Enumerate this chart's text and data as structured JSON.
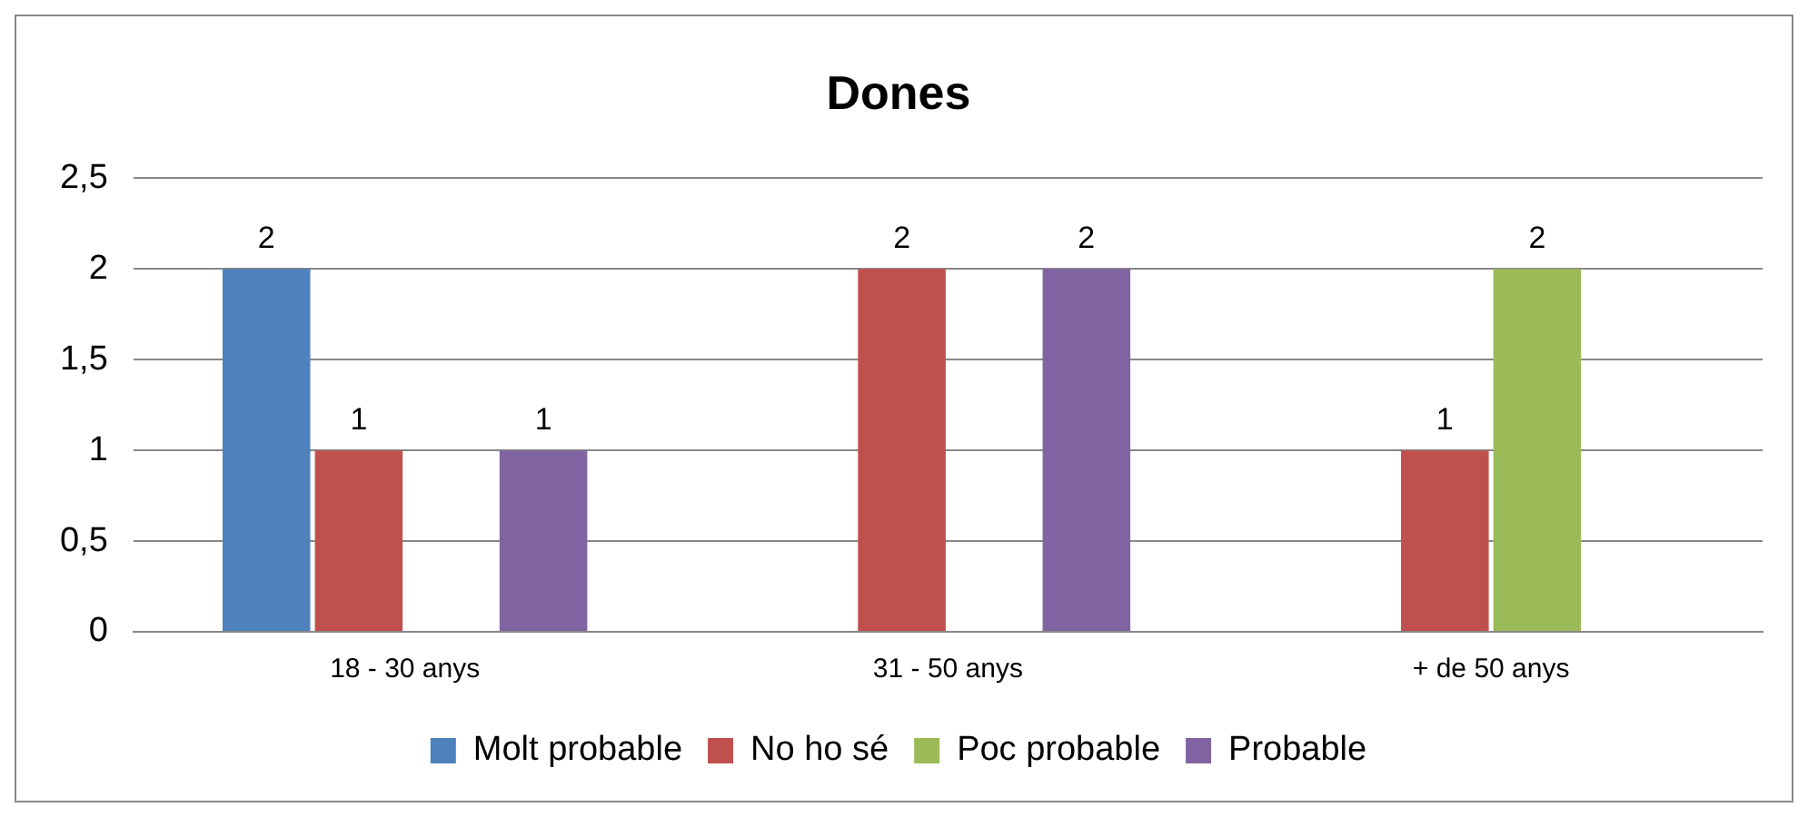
{
  "chart_data": {
    "type": "bar",
    "title": "Dones",
    "categories": [
      "18 - 30 anys",
      "31 - 50 anys",
      "+ de 50 anys"
    ],
    "series": [
      {
        "name": "Molt probable",
        "color": "#4f81bd",
        "values": [
          2,
          null,
          null
        ]
      },
      {
        "name": "No ho sé",
        "color": "#c0504d",
        "values": [
          1,
          2,
          1
        ]
      },
      {
        "name": "Poc probable",
        "color": "#9bbb59",
        "values": [
          null,
          null,
          2
        ]
      },
      {
        "name": "Probable",
        "color": "#8064a2",
        "values": [
          1,
          2,
          null
        ]
      }
    ],
    "ylim": [
      0,
      2.5
    ],
    "yticks": [
      0,
      {
        "value": 0.5,
        "label": "0,5"
      },
      1,
      {
        "value": 1.5,
        "label": "1,5"
      },
      2,
      {
        "value": 2.5,
        "label": "2,5"
      }
    ],
    "grid": "y",
    "legend": "bottom",
    "data_labels": true
  }
}
